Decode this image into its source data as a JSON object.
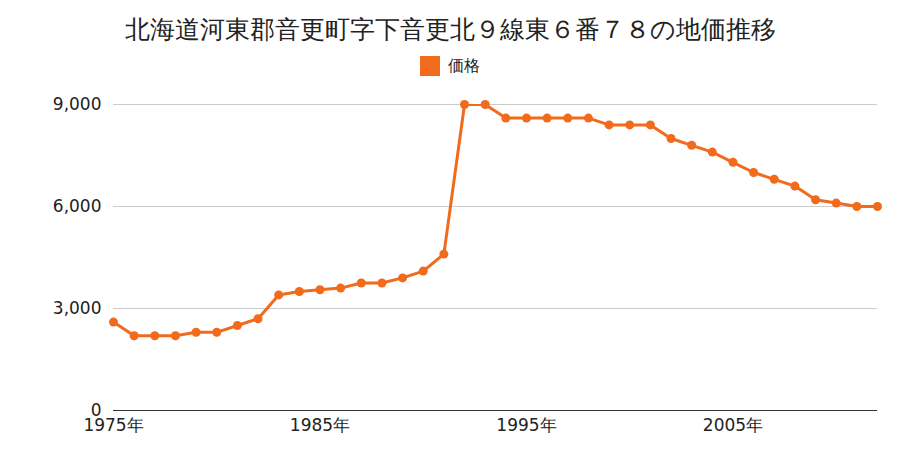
{
  "chart_data": {
    "type": "line",
    "title": "北海道河東郡音更町字下音更北９線東６番７８の地価推移",
    "x": [
      1975,
      1976,
      1977,
      1978,
      1979,
      1980,
      1981,
      1982,
      1983,
      1984,
      1985,
      1986,
      1987,
      1988,
      1989,
      1990,
      1991,
      1992,
      1993,
      1994,
      1995,
      1996,
      1997,
      1998,
      1999,
      2000,
      2001,
      2002,
      2003,
      2004,
      2005,
      2006,
      2007,
      2008,
      2009,
      2010,
      2011,
      2012
    ],
    "series": [
      {
        "name": "価格",
        "color": "#f26a1b",
        "marker": "circle",
        "values": [
          2600,
          2200,
          2200,
          2200,
          2300,
          2300,
          2500,
          2700,
          3400,
          3500,
          3550,
          3600,
          3750,
          3750,
          3900,
          4100,
          4600,
          9000,
          9000,
          8600,
          8600,
          8600,
          8600,
          8600,
          8400,
          8400,
          8400,
          8000,
          7800,
          7600,
          7300,
          7000,
          6800,
          6600,
          6200,
          6100,
          6000,
          6000
        ]
      }
    ],
    "xlim": [
      1975,
      2012
    ],
    "xticks": [
      {
        "value": 1975,
        "label": "1975年"
      },
      {
        "value": 1985,
        "label": "1985年"
      },
      {
        "value": 1995,
        "label": "1995年"
      },
      {
        "value": 2005,
        "label": "2005年"
      }
    ],
    "ylim": [
      0,
      9000
    ],
    "yticks": [
      0,
      {
        "value": 3000,
        "label": "3,000"
      },
      {
        "value": 6000,
        "label": "6,000"
      },
      {
        "value": 9000,
        "label": "9,000"
      }
    ],
    "grid": true,
    "legend": "top"
  }
}
